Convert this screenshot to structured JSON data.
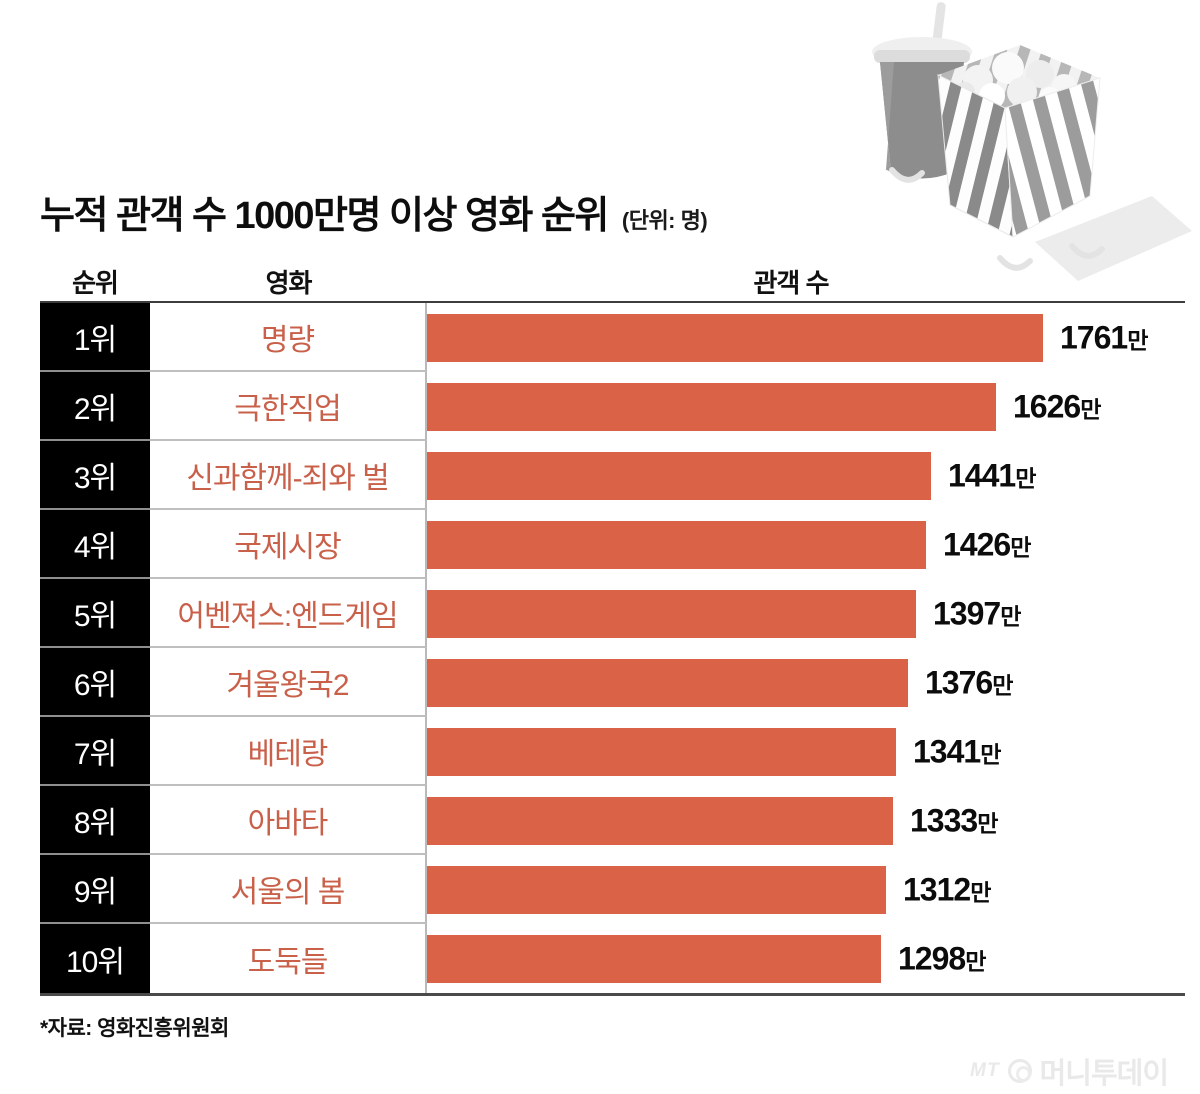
{
  "header": {
    "title": "누적 관객 수 1000만명 이상 영화 순위",
    "unit_label": "(단위: 명)"
  },
  "table": {
    "columns": {
      "rank": "순위",
      "movie": "영화",
      "audience": "관객 수"
    }
  },
  "chart_data": {
    "type": "bar",
    "orientation": "horizontal",
    "title": "누적 관객 수 1000만명 이상 영화 순위",
    "unit": "명",
    "ranks": [
      "1위",
      "2위",
      "3위",
      "4위",
      "5위",
      "6위",
      "7위",
      "8위",
      "9위",
      "10위"
    ],
    "categories": [
      "명량",
      "극한직업",
      "신과함께-죄와 벌",
      "국제시장",
      "어벤져스:엔드게임",
      "겨울왕국2",
      "베테랑",
      "아바타",
      "서울의 봄",
      "도둑들"
    ],
    "values": [
      1761,
      1626,
      1441,
      1426,
      1397,
      1376,
      1341,
      1333,
      1312,
      1298
    ],
    "value_suffix": "만",
    "value_labels": [
      "1761만",
      "1626만",
      "1441만",
      "1426만",
      "1397만",
      "1376만",
      "1341만",
      "1333만",
      "1312만",
      "1298만"
    ],
    "max_value": 1761,
    "xlim": [
      0,
      1761
    ],
    "bar_color": "#d96247",
    "grid": false,
    "legend": false
  },
  "footer": {
    "source": "*자료: 영화진흥위원회",
    "logo_mt": "MT",
    "logo_name": "머니투데이"
  }
}
